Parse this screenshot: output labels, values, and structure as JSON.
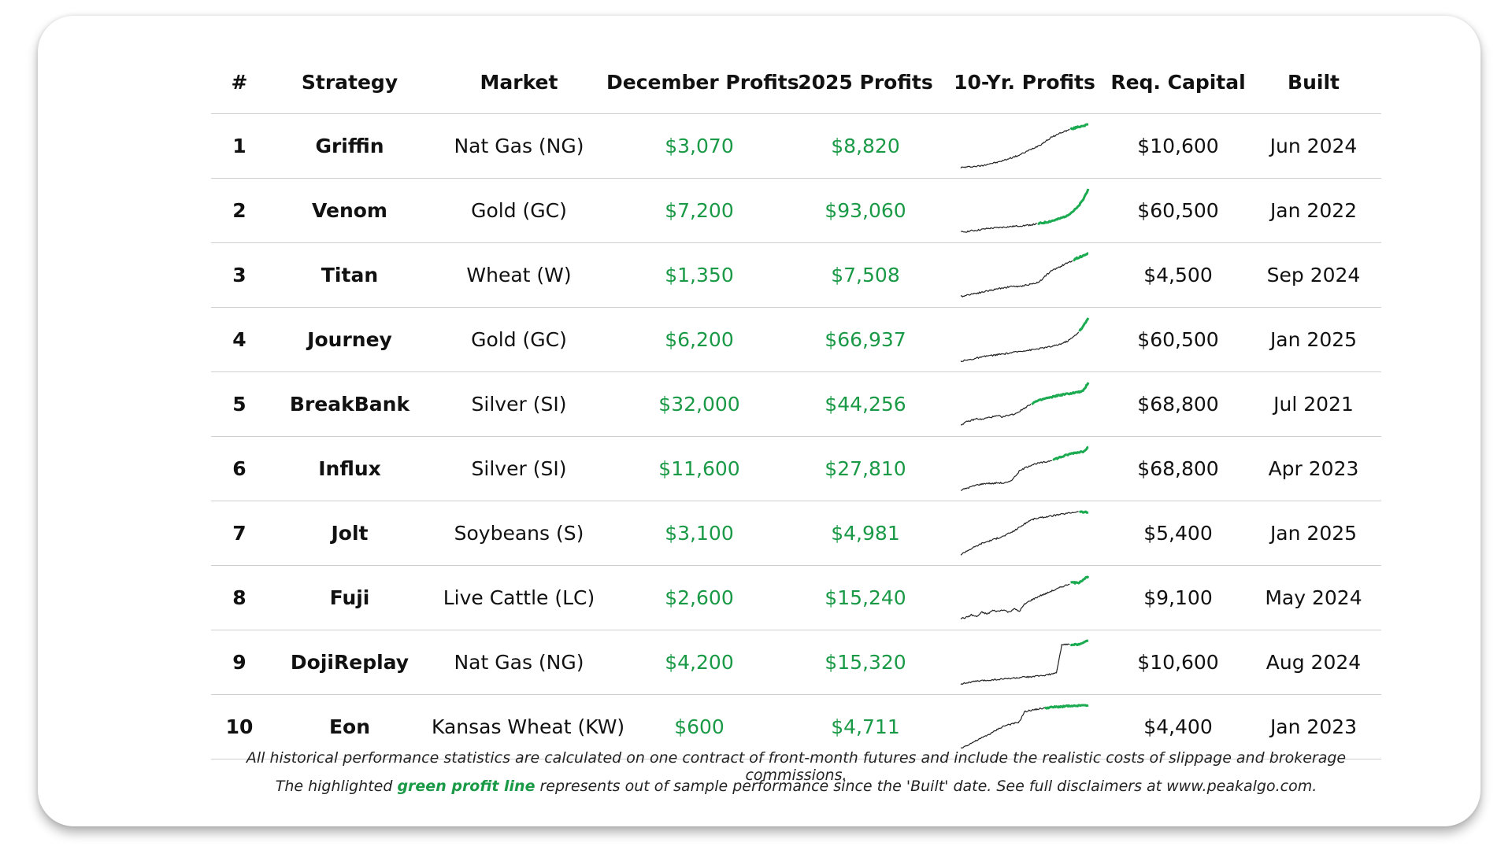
{
  "headers": {
    "num": "#",
    "strategy": "Strategy",
    "market": "Market",
    "december": "December Profits",
    "ytd": "2025 Profits",
    "ten_year": "10-Yr. Profits",
    "capital": "Req. Capital",
    "built": "Built"
  },
  "colors": {
    "profit_green": "#1a9a46",
    "sparkline_history": "#222222",
    "sparkline_out_of_sample": "#1aaa4f"
  },
  "rows": [
    {
      "num": "1",
      "strategy": "Griffin",
      "market": "Nat Gas (NG)",
      "december": "$3,070",
      "ytd": "$8,820",
      "capital": "$10,600",
      "built": "Jun 2024",
      "spark": [
        0.02,
        0.03,
        0.04,
        0.05,
        0.06,
        0.1,
        0.12,
        0.14,
        0.18,
        0.22,
        0.26,
        0.3,
        0.36,
        0.42,
        0.48,
        0.54,
        0.62,
        0.7,
        0.76,
        0.82,
        0.86,
        0.9,
        0.94,
        0.97,
        1.0
      ],
      "oos_start": 0.86
    },
    {
      "num": "2",
      "strategy": "Venom",
      "market": "Gold (GC)",
      "december": "$7,200",
      "ytd": "$93,060",
      "capital": "$60,500",
      "built": "Jan 2022",
      "spark": [
        0.02,
        0.03,
        0.05,
        0.06,
        0.08,
        0.1,
        0.11,
        0.12,
        0.13,
        0.14,
        0.15,
        0.16,
        0.17,
        0.18,
        0.2,
        0.22,
        0.24,
        0.27,
        0.3,
        0.34,
        0.4,
        0.48,
        0.58,
        0.75,
        1.0
      ],
      "oos_start": 0.6
    },
    {
      "num": "3",
      "strategy": "Titan",
      "market": "Wheat (W)",
      "december": "$1,350",
      "ytd": "$7,508",
      "capital": "$4,500",
      "built": "Sep 2024",
      "spark": [
        0.02,
        0.05,
        0.08,
        0.1,
        0.12,
        0.15,
        0.17,
        0.2,
        0.22,
        0.24,
        0.26,
        0.24,
        0.28,
        0.3,
        0.32,
        0.38,
        0.5,
        0.6,
        0.66,
        0.72,
        0.78,
        0.84,
        0.9,
        0.95,
        1.0
      ],
      "oos_start": 0.88
    },
    {
      "num": "4",
      "strategy": "Journey",
      "market": "Gold (GC)",
      "december": "$6,200",
      "ytd": "$66,937",
      "capital": "$60,500",
      "built": "Jan 2025",
      "spark": [
        0.02,
        0.04,
        0.06,
        0.09,
        0.11,
        0.14,
        0.15,
        0.17,
        0.18,
        0.2,
        0.22,
        0.24,
        0.26,
        0.27,
        0.29,
        0.31,
        0.33,
        0.35,
        0.38,
        0.42,
        0.47,
        0.55,
        0.66,
        0.8,
        1.0
      ],
      "oos_start": 0.93
    },
    {
      "num": "5",
      "strategy": "BreakBank",
      "market": "Silver (SI)",
      "december": "$32,000",
      "ytd": "$44,256",
      "capital": "$68,800",
      "built": "Jul 2021",
      "spark": [
        0.04,
        0.1,
        0.14,
        0.18,
        0.16,
        0.2,
        0.22,
        0.24,
        0.22,
        0.26,
        0.28,
        0.34,
        0.42,
        0.5,
        0.56,
        0.6,
        0.64,
        0.66,
        0.7,
        0.72,
        0.74,
        0.76,
        0.78,
        0.8,
        1.0
      ],
      "oos_start": 0.55
    },
    {
      "num": "6",
      "strategy": "Influx",
      "market": "Silver (SI)",
      "december": "$11,600",
      "ytd": "$27,810",
      "capital": "$68,800",
      "built": "Apr 2023",
      "spark": [
        0.02,
        0.06,
        0.1,
        0.14,
        0.16,
        0.18,
        0.17,
        0.19,
        0.18,
        0.2,
        0.3,
        0.45,
        0.52,
        0.58,
        0.62,
        0.64,
        0.66,
        0.7,
        0.74,
        0.78,
        0.82,
        0.86,
        0.88,
        0.9,
        1.0
      ],
      "oos_start": 0.72
    },
    {
      "num": "7",
      "strategy": "Jolt",
      "market": "Soybeans (S)",
      "december": "$3,100",
      "ytd": "$4,981",
      "capital": "$5,400",
      "built": "Jan 2025",
      "spark": [
        0.02,
        0.1,
        0.16,
        0.22,
        0.28,
        0.32,
        0.36,
        0.4,
        0.44,
        0.5,
        0.56,
        0.64,
        0.72,
        0.8,
        0.84,
        0.86,
        0.88,
        0.9,
        0.92,
        0.94,
        0.96,
        0.98,
        1.0,
        0.99,
        0.98
      ],
      "oos_start": 0.93
    },
    {
      "num": "8",
      "strategy": "Fuji",
      "market": "Live Cattle (LC)",
      "december": "$2,600",
      "ytd": "$15,240",
      "capital": "$9,100",
      "built": "May 2024",
      "spark": [
        0.04,
        0.06,
        0.12,
        0.08,
        0.18,
        0.14,
        0.22,
        0.2,
        0.24,
        0.18,
        0.26,
        0.2,
        0.36,
        0.44,
        0.5,
        0.56,
        0.6,
        0.66,
        0.7,
        0.76,
        0.8,
        0.86,
        0.84,
        0.92,
        1.0
      ],
      "oos_start": 0.86
    },
    {
      "num": "9",
      "strategy": "DojiReplay",
      "market": "Nat Gas (NG)",
      "december": "$4,200",
      "ytd": "$15,320",
      "capital": "$10,600",
      "built": "Aug 2024",
      "spark": [
        0.02,
        0.04,
        0.06,
        0.08,
        0.09,
        0.1,
        0.11,
        0.12,
        0.13,
        0.14,
        0.15,
        0.16,
        0.17,
        0.18,
        0.19,
        0.2,
        0.22,
        0.24,
        0.26,
        0.9,
        0.92,
        0.9,
        0.92,
        0.95,
        1.0
      ],
      "oos_start": 0.86
    },
    {
      "num": "10",
      "strategy": "Eon",
      "market": "Kansas Wheat (KW)",
      "december": "$600",
      "ytd": "$4,711",
      "capital": "$4,400",
      "built": "Jan 2023",
      "spark": [
        0.02,
        0.08,
        0.14,
        0.2,
        0.26,
        0.32,
        0.38,
        0.46,
        0.52,
        0.56,
        0.58,
        0.62,
        0.85,
        0.88,
        0.9,
        0.92,
        0.94,
        0.95,
        0.96,
        0.97,
        0.98,
        0.97,
        0.99,
        1.0,
        1.0
      ],
      "oos_start": 0.66
    }
  ],
  "footer": {
    "line1": "All historical performance statistics are calculated on one contract of front-month futures and include the realistic costs of slippage and brokerage commissions.",
    "line2_pre": "The highlighted",
    "line2_highlight": "green profit line",
    "line2_post": "represents out of sample performance since the 'Built' date. See full disclaimers at www.peakalgo.com."
  }
}
